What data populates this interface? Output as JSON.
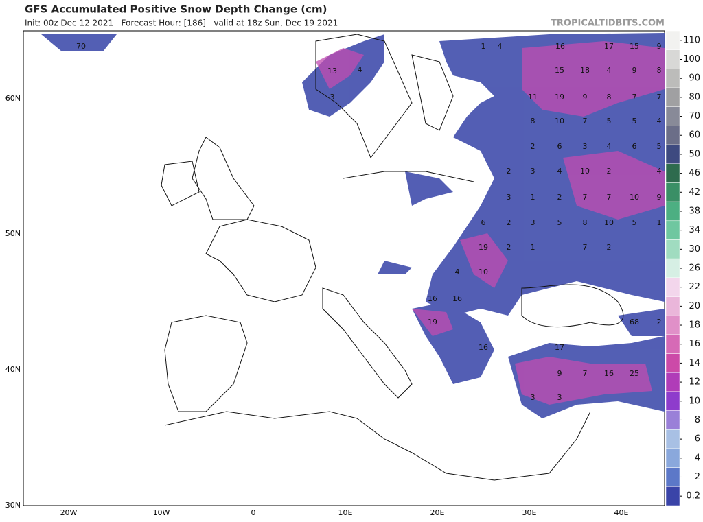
{
  "header": {
    "title": "GFS Accumulated Positive Snow Depth Change (cm)",
    "subtitle": "Init: 00z Dec 12 2021   Forecast Hour: [186]   valid at 18z Sun, Dec 19 2021",
    "site": "TROPICALTIDBITS.COM"
  },
  "map": {
    "lat_labels": [
      "60N",
      "50N",
      "40N",
      "30N"
    ],
    "lon_labels": [
      "20W",
      "10W",
      "0",
      "10E",
      "20E",
      "30E",
      "40E"
    ],
    "value_labels": [
      70,
      13,
      4,
      3,
      1,
      4,
      16,
      17,
      15,
      9,
      15,
      18,
      4,
      9,
      8,
      11,
      19,
      9,
      8,
      7,
      7,
      8,
      10,
      7,
      5,
      5,
      4,
      2,
      6,
      3,
      4,
      6,
      5,
      2,
      3,
      4,
      10,
      2,
      4,
      3,
      1,
      2,
      7,
      7,
      10,
      9,
      6,
      2,
      3,
      5,
      8,
      10,
      5,
      1,
      19,
      2,
      1,
      7,
      2,
      4,
      10,
      16,
      16,
      19,
      68,
      2,
      16,
      17,
      9,
      7,
      16,
      25,
      3,
      3
    ]
  },
  "colorbar": {
    "levels": [
      110,
      100,
      90,
      80,
      70,
      60,
      50,
      46,
      42,
      38,
      34,
      30,
      26,
      22,
      20,
      18,
      16,
      14,
      12,
      10,
      8,
      6,
      4,
      2,
      0.2
    ],
    "colors": [
      "#f2f2f0",
      "#d8d8d6",
      "#bcbcba",
      "#a0a0a2",
      "#888a98",
      "#6b6e88",
      "#3e4a80",
      "#2e6b4e",
      "#3a8f66",
      "#4caf82",
      "#6fc7a0",
      "#a0dcc0",
      "#d6efe4",
      "#f3d6ec",
      "#eab6da",
      "#e090c8",
      "#d66ab6",
      "#cc4aa8",
      "#b03cb8",
      "#8e3ccc",
      "#9a80d8",
      "#a8c0e4",
      "#8aa8dc",
      "#5c78c8",
      "#3a44a8"
    ]
  }
}
